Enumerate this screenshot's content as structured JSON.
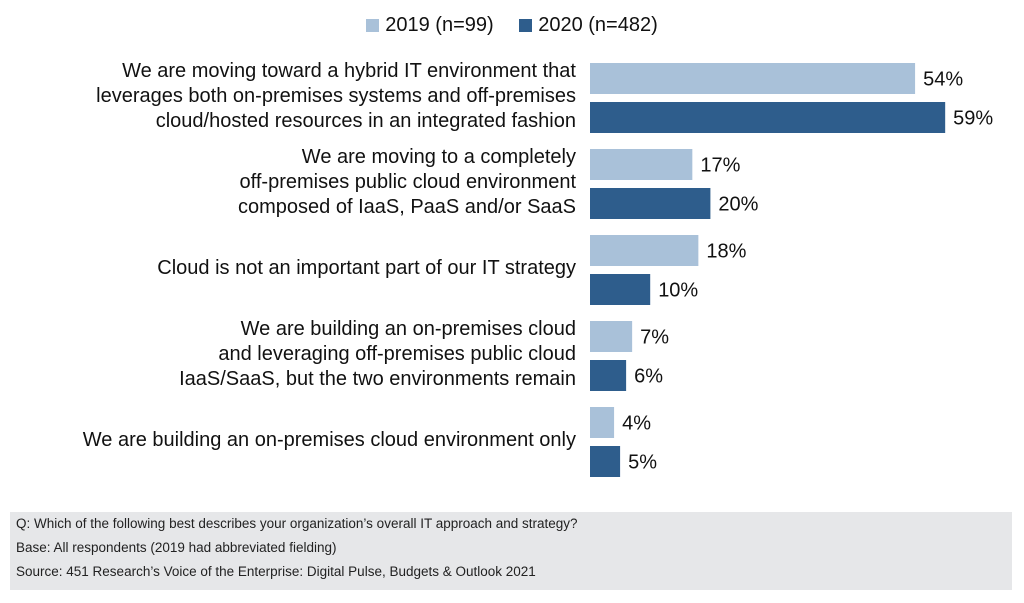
{
  "chart_data": {
    "type": "bar",
    "orientation": "horizontal",
    "categories": [
      "We are moving toward a hybrid IT environment that leverages both on-premises systems and off-premises cloud/hosted resources in an integrated fashion",
      "We are moving to a completely off-premises public cloud environment composed of IaaS, PaaS and/or SaaS",
      "Cloud is not an important part of our IT strategy",
      "We are building an on-premises cloud and leveraging off-premises public cloud IaaS/SaaS, but the two environments remain",
      "We are building an on-premises cloud environment only"
    ],
    "category_lines": [
      [
        "We are moving toward a hybrid IT environment that",
        "leverages both on-premises systems and off-premises",
        "cloud/hosted resources in an integrated fashion"
      ],
      [
        "We are moving to a completely",
        "off-premises public cloud environment",
        "composed of IaaS, PaaS and/or SaaS"
      ],
      [
        "Cloud is not an important part of our IT strategy"
      ],
      [
        "We are building an on-premises cloud",
        "and leveraging off-premises public cloud",
        "IaaS/SaaS, but the two environments remain"
      ],
      [
        "We are building an on-premises cloud environment only"
      ]
    ],
    "series": [
      {
        "name": "2019 (n=99)",
        "color": "#a9c1d9",
        "values": [
          54,
          17,
          18,
          7,
          4
        ]
      },
      {
        "name": "2020 (n=482)",
        "color": "#2e5d8c",
        "values": [
          59,
          20,
          10,
          6,
          5
        ]
      }
    ],
    "value_suffix": "%",
    "legend_position": "top",
    "grid": false
  },
  "footer": {
    "question": "Q: Which of the following best describes your organization’s overall IT approach and strategy?",
    "base": "Base: All respondents (2019 had abbreviated fielding)",
    "source": "Source: 451 Research’s Voice of the Enterprise: Digital Pulse, Budgets & Outlook 2021"
  }
}
